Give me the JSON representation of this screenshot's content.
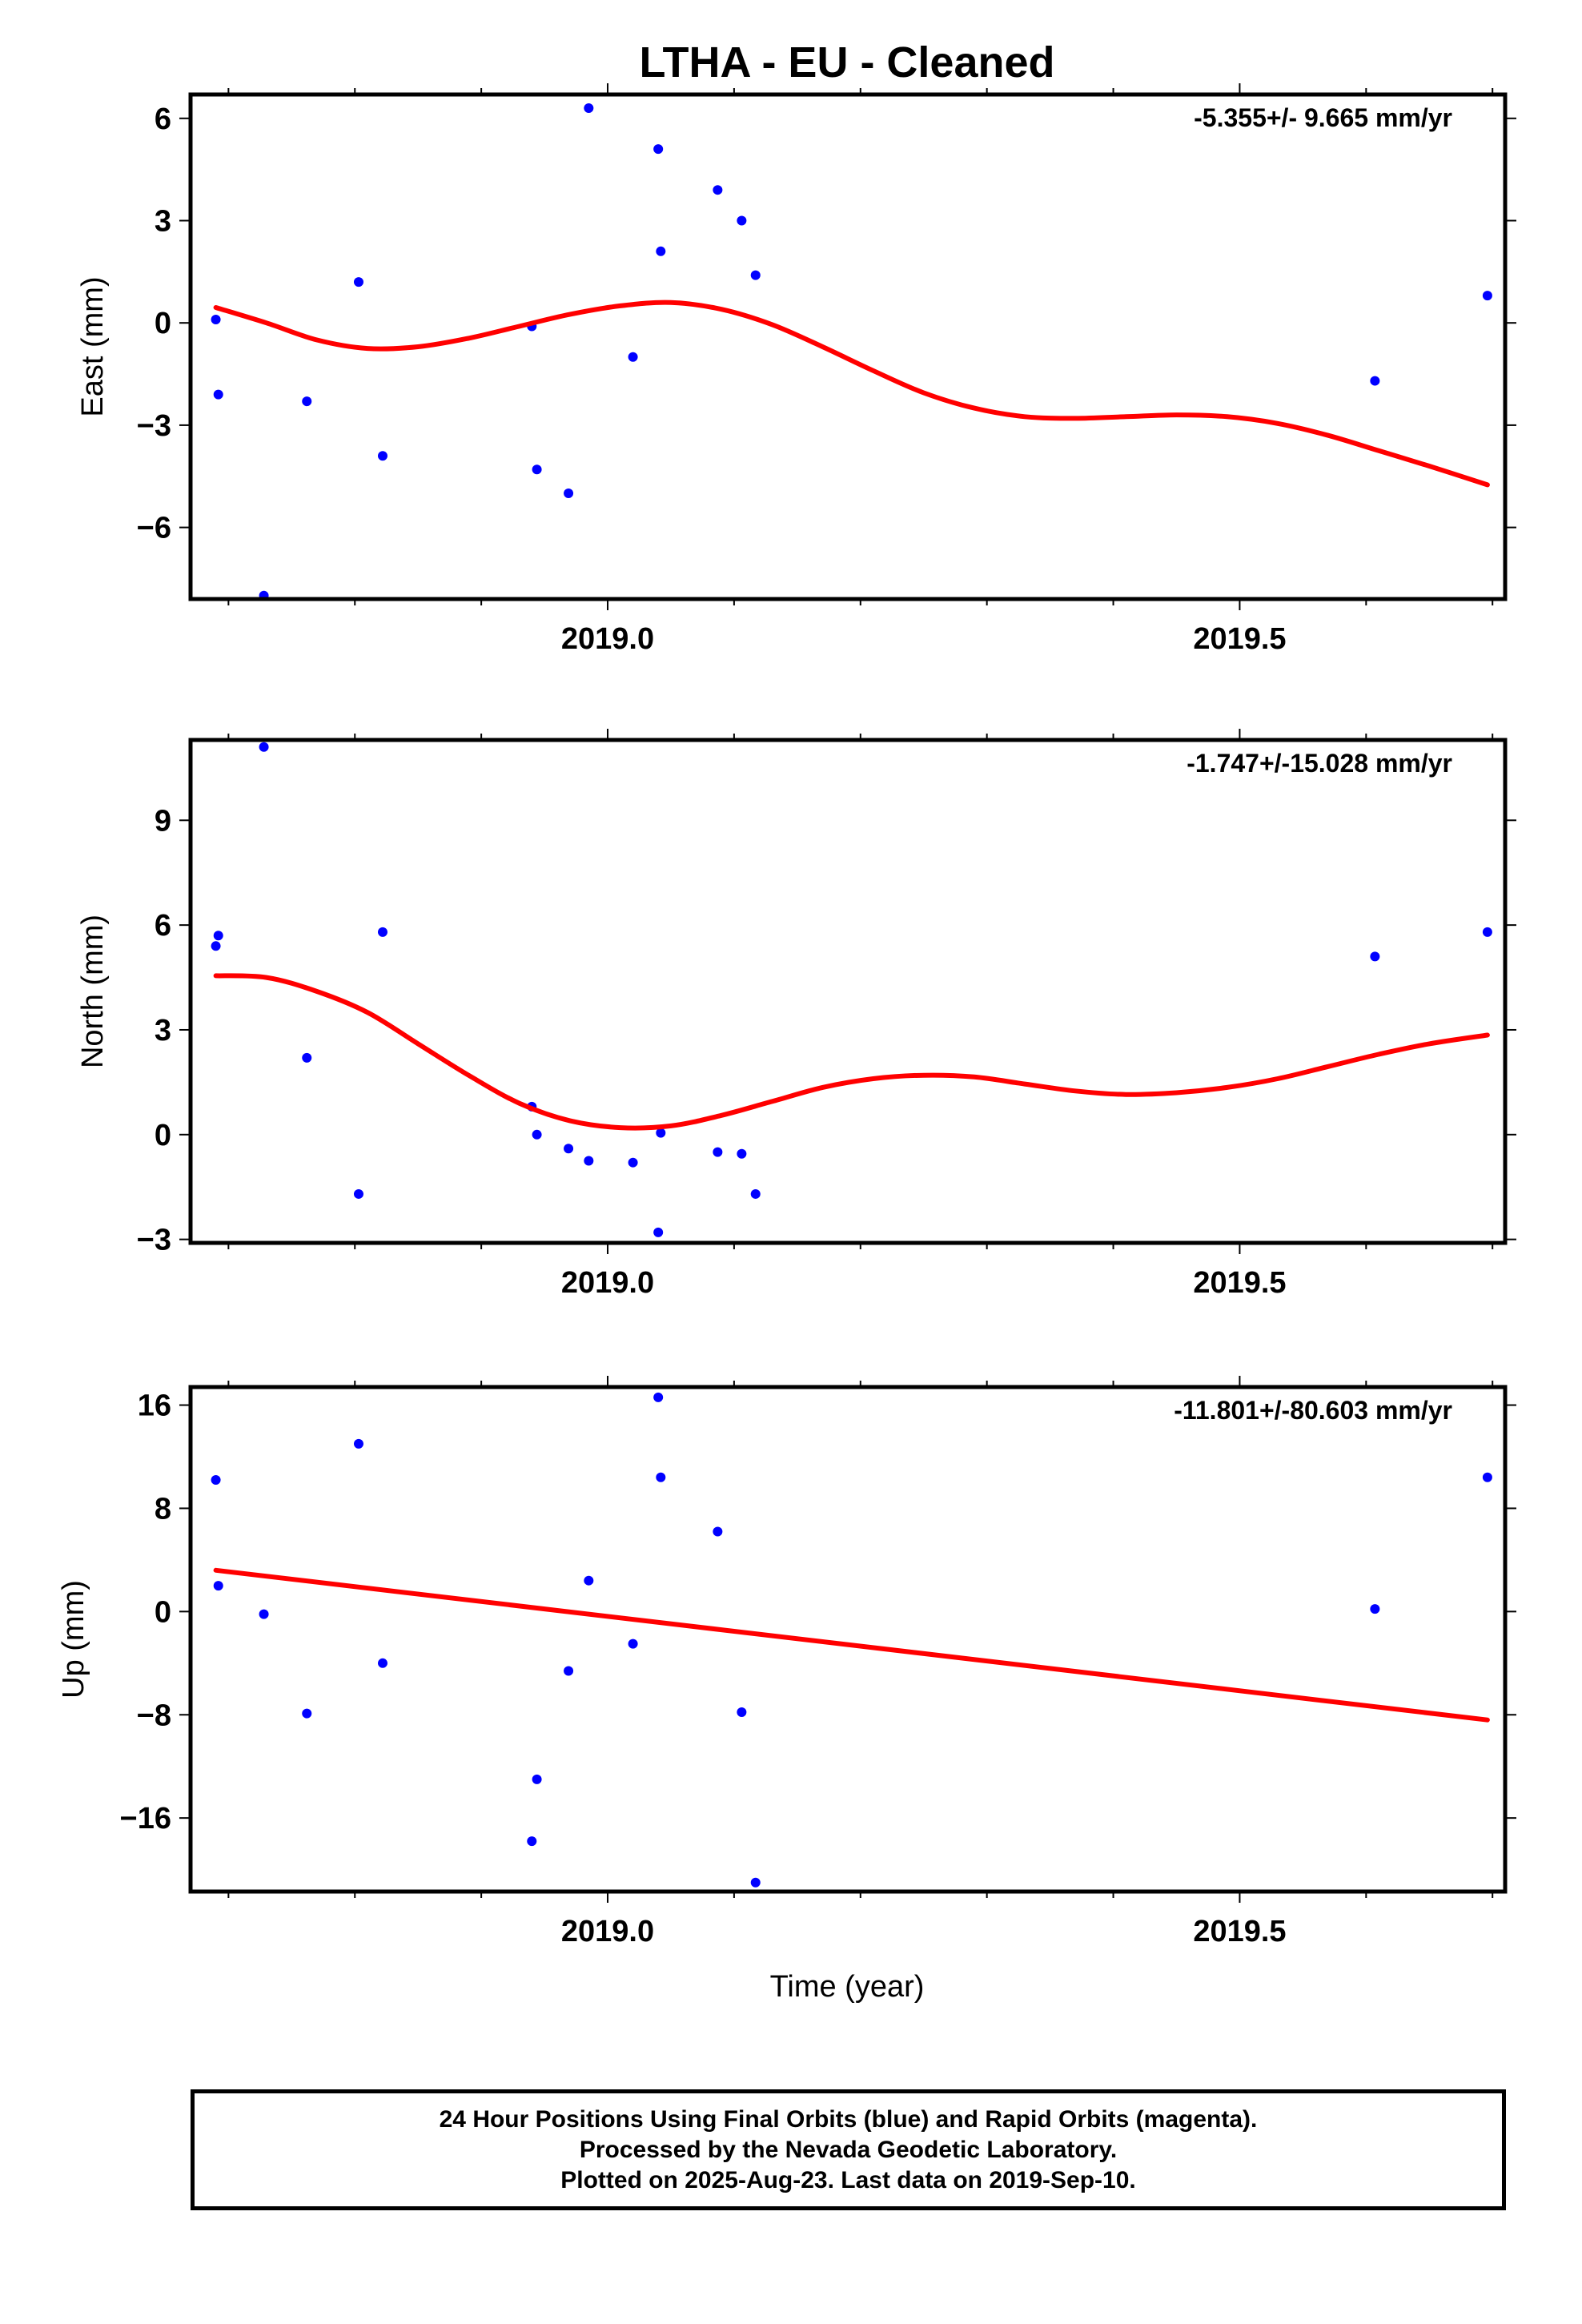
{
  "title": "LTHA  - EU - Cleaned",
  "xlabel": "Time (year)",
  "footer": {
    "line1": "24 Hour Positions Using Final Orbits (blue) and Rapid Orbits (magenta).",
    "line2": "Processed by the Nevada Geodetic Laboratory.",
    "line3": "Plotted on 2025-Aug-23. Last data on 2019-Sep-10."
  },
  "colors": {
    "points": "#0000ff",
    "fit": "#ff0000",
    "axes": "#000000"
  },
  "chart_data": [
    {
      "type": "scatter",
      "ylabel": "East (mm)",
      "rate_label": "-5.355+/- 9.665 mm/yr",
      "xlim": [
        2018.67,
        2019.71
      ],
      "ylim": [
        -8.1,
        6.7
      ],
      "x_ticks": [
        2019.0,
        2019.5
      ],
      "x_tick_labels": [
        "2019.0",
        "2019.5"
      ],
      "y_ticks": [
        -6,
        -3,
        0,
        3,
        6
      ],
      "y_tick_labels": [
        "−6",
        "−3",
        "0",
        "3",
        "6"
      ],
      "points": {
        "x": [
          2018.69,
          2018.692,
          2018.728,
          2018.762,
          2018.803,
          2018.822,
          2018.94,
          2018.944,
          2018.969,
          2018.985,
          2019.02,
          2019.04,
          2019.042,
          2019.087,
          2019.106,
          2019.117,
          2019.607,
          2019.696
        ],
        "y": [
          0.1,
          -2.1,
          -8.0,
          -2.3,
          1.2,
          -3.9,
          -0.1,
          -4.3,
          -5.0,
          6.3,
          -1.0,
          5.1,
          2.1,
          3.9,
          3.0,
          1.4,
          -1.7,
          0.8
        ]
      },
      "fit": {
        "x": [
          2018.69,
          2018.73,
          2018.77,
          2018.81,
          2018.85,
          2018.89,
          2018.93,
          2018.97,
          2019.01,
          2019.05,
          2019.09,
          2019.13,
          2019.17,
          2019.21,
          2019.25,
          2019.29,
          2019.33,
          2019.37,
          2019.41,
          2019.45,
          2019.49,
          2019.53,
          2019.57,
          2019.61,
          2019.65,
          2019.696
        ],
        "y": [
          0.45,
          0.0,
          -0.5,
          -0.75,
          -0.7,
          -0.45,
          -0.1,
          0.25,
          0.5,
          0.6,
          0.4,
          -0.05,
          -0.7,
          -1.4,
          -2.05,
          -2.5,
          -2.75,
          -2.8,
          -2.75,
          -2.7,
          -2.75,
          -2.95,
          -3.3,
          -3.75,
          -4.2,
          -4.75
        ]
      }
    },
    {
      "type": "scatter",
      "ylabel": "North (mm)",
      "rate_label": "-1.747+/-15.028 mm/yr",
      "xlim": [
        2018.67,
        2019.71
      ],
      "ylim": [
        -3.1,
        11.3
      ],
      "x_ticks": [
        2019.0,
        2019.5
      ],
      "x_tick_labels": [
        "2019.0",
        "2019.5"
      ],
      "y_ticks": [
        -3,
        0,
        3,
        6,
        9
      ],
      "y_tick_labels": [
        "−3",
        "0",
        "3",
        "6",
        "9"
      ],
      "points": {
        "x": [
          2018.69,
          2018.692,
          2018.728,
          2018.762,
          2018.803,
          2018.822,
          2018.94,
          2018.944,
          2018.969,
          2018.985,
          2019.02,
          2019.04,
          2019.042,
          2019.087,
          2019.106,
          2019.117,
          2019.607,
          2019.696
        ],
        "y": [
          5.4,
          5.7,
          11.1,
          2.2,
          -1.7,
          5.8,
          0.8,
          0.0,
          -0.4,
          -0.75,
          -0.8,
          -2.8,
          0.05,
          -0.5,
          -0.55,
          -1.7,
          5.1,
          5.8
        ]
      },
      "fit": {
        "x": [
          2018.69,
          2018.73,
          2018.77,
          2018.81,
          2018.85,
          2018.89,
          2018.93,
          2018.97,
          2019.01,
          2019.05,
          2019.09,
          2019.13,
          2019.17,
          2019.21,
          2019.25,
          2019.29,
          2019.33,
          2019.37,
          2019.41,
          2019.45,
          2019.49,
          2019.53,
          2019.57,
          2019.61,
          2019.65,
          2019.696
        ],
        "y": [
          4.55,
          4.5,
          4.1,
          3.5,
          2.6,
          1.7,
          0.9,
          0.4,
          0.2,
          0.25,
          0.55,
          0.95,
          1.35,
          1.6,
          1.7,
          1.65,
          1.45,
          1.25,
          1.15,
          1.2,
          1.35,
          1.6,
          1.95,
          2.3,
          2.6,
          2.85
        ]
      }
    },
    {
      "type": "scatter",
      "ylabel": "Up (mm)",
      "rate_label": "-11.801+/-80.603 mm/yr",
      "xlim": [
        2018.67,
        2019.71
      ],
      "ylim": [
        -21.7,
        17.4
      ],
      "x_ticks": [
        2019.0,
        2019.5
      ],
      "x_tick_labels": [
        "2019.0",
        "2019.5"
      ],
      "y_ticks": [
        -16,
        -8,
        0,
        8,
        16
      ],
      "y_tick_labels": [
        "−16",
        "−8",
        "0",
        "8",
        "16"
      ],
      "points": {
        "x": [
          2018.69,
          2018.692,
          2018.728,
          2018.762,
          2018.803,
          2018.822,
          2018.94,
          2018.944,
          2018.969,
          2018.985,
          2019.02,
          2019.04,
          2019.042,
          2019.087,
          2019.106,
          2019.117,
          2019.607,
          2019.696
        ],
        "y": [
          10.2,
          2.0,
          -0.2,
          -7.9,
          13.0,
          -4.0,
          -17.8,
          -13.0,
          -4.6,
          2.4,
          -2.5,
          16.6,
          10.4,
          6.2,
          -7.8,
          -21.0,
          0.2,
          10.4
        ]
      },
      "fit": {
        "x": [
          2018.69,
          2019.696
        ],
        "y": [
          3.2,
          -8.4
        ]
      }
    }
  ]
}
